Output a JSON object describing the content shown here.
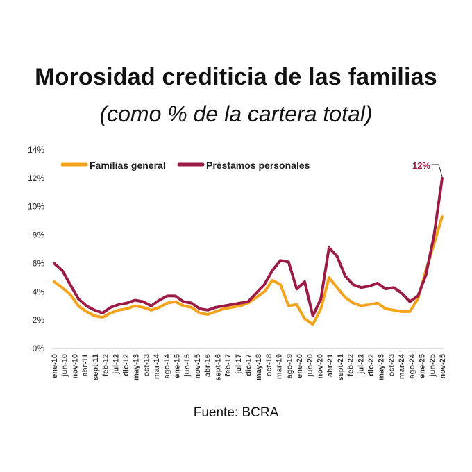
{
  "title": "Morosidad crediticia de las familias",
  "subtitle": "(como % de la cartera total)",
  "source": "Fuente: BCRA",
  "colors": {
    "familias": "#F5A31A",
    "personales": "#9B1B46"
  },
  "chart_data": {
    "type": "line",
    "ylim": [
      0,
      14
    ],
    "yticks": [
      "0%",
      "2%",
      "4%",
      "6%",
      "8%",
      "10%",
      "12%",
      "14%"
    ],
    "ytick_values": [
      0,
      2,
      4,
      6,
      8,
      10,
      12,
      14
    ],
    "xtick_labels": [
      "ene-10",
      "jun-10",
      "nov-10",
      "abr-11",
      "sept-11",
      "feb-12",
      "jul-12",
      "dic-12",
      "may-13",
      "oct-13",
      "mar-14",
      "ago-14",
      "ene-15",
      "jun-15",
      "nov-15",
      "abr-16",
      "sept-16",
      "feb-17",
      "jul-17",
      "dic-17",
      "may-18",
      "oct-18",
      "mar-19",
      "ago-19",
      "ene-20",
      "jun-20",
      "nov-20",
      "abr-21",
      "sept-21",
      "feb-22",
      "jul-22",
      "dic-22",
      "may-23",
      "oct-23",
      "mar-24",
      "ago-24",
      "ene-25",
      "jun-25",
      "nov-25"
    ],
    "legend_position": "top-left",
    "annotation": {
      "text": "12%",
      "x": "nov-25",
      "series": "Préstamos personales"
    },
    "series": [
      {
        "name": "Familias general",
        "values": [
          4.7,
          4.3,
          3.8,
          3.0,
          2.6,
          2.3,
          2.2,
          2.5,
          2.7,
          2.8,
          3.0,
          2.9,
          2.7,
          2.9,
          3.2,
          3.3,
          3.0,
          2.9,
          2.5,
          2.4,
          2.6,
          2.8,
          2.9,
          3.0,
          3.2,
          3.6,
          4.0,
          4.8,
          4.5,
          3.0,
          3.1,
          2.1,
          1.7,
          2.8,
          5.0,
          4.3,
          3.6,
          3.2,
          3.0,
          3.1,
          3.2,
          2.8,
          2.7,
          2.6,
          2.6,
          3.5,
          5.5,
          7.4,
          9.3
        ]
      },
      {
        "name": "Préstamos personales",
        "values": [
          6.0,
          5.5,
          4.5,
          3.5,
          3.0,
          2.7,
          2.5,
          2.9,
          3.1,
          3.2,
          3.4,
          3.3,
          3.0,
          3.4,
          3.7,
          3.7,
          3.3,
          3.2,
          2.8,
          2.7,
          2.9,
          3.0,
          3.1,
          3.2,
          3.3,
          3.9,
          4.5,
          5.5,
          6.2,
          6.1,
          4.2,
          4.7,
          2.3,
          3.5,
          7.1,
          6.5,
          5.1,
          4.5,
          4.3,
          4.4,
          4.6,
          4.2,
          4.3,
          3.9,
          3.3,
          3.7,
          5.2,
          8.0,
          12.0
        ]
      }
    ]
  }
}
